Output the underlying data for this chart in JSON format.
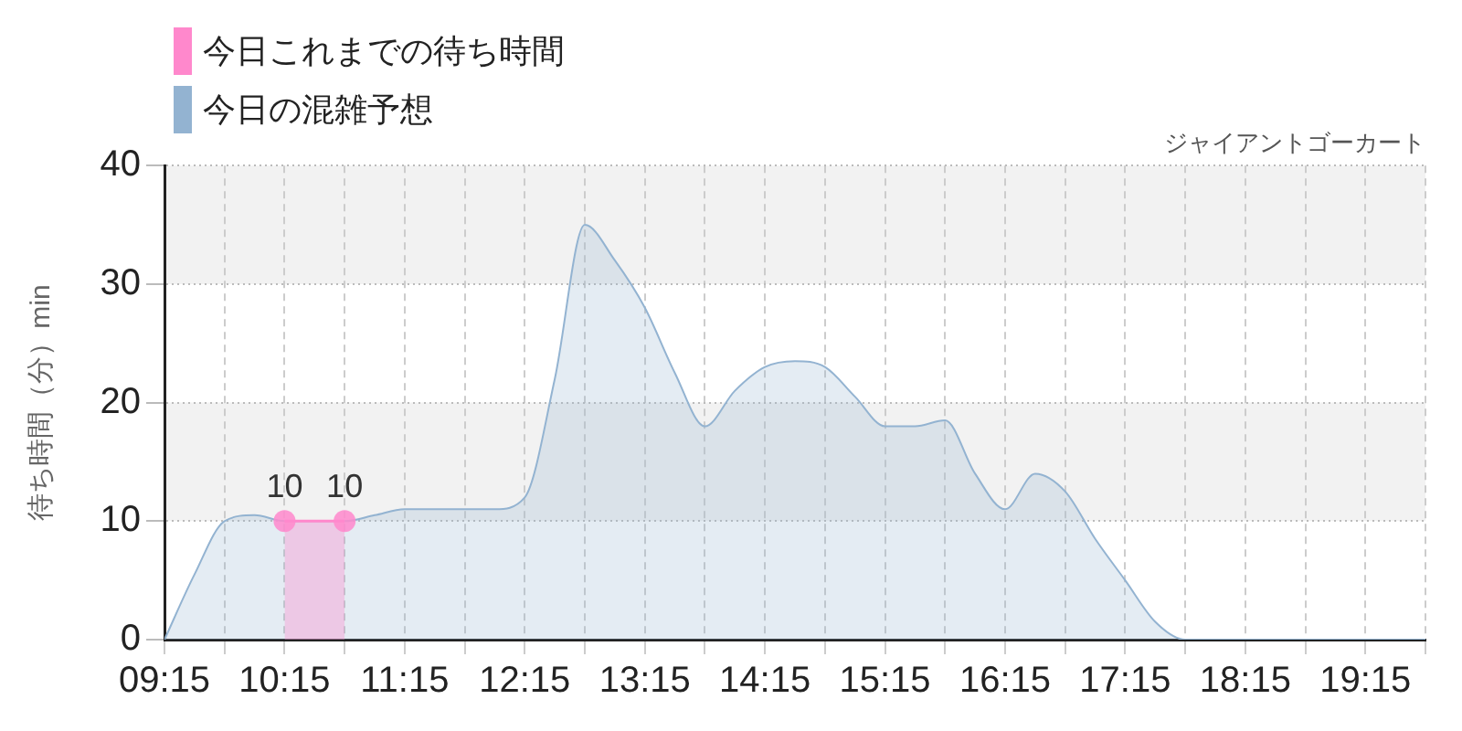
{
  "chart_data": {
    "type": "area",
    "title": "ジャイアントゴーカート",
    "ylabel": "待ち時間（分）min",
    "x": [
      9.25,
      9.5,
      9.75,
      10,
      10.25,
      10.5,
      10.75,
      11,
      11.25,
      11.5,
      11.75,
      12,
      12.25,
      12.5,
      12.75,
      13,
      13.25,
      13.5,
      13.75,
      14,
      14.25,
      14.5,
      14.75,
      15,
      15.25,
      15.5,
      15.75,
      16,
      16.25,
      16.5,
      16.75,
      17,
      17.25,
      17.5,
      17.75,
      18,
      18.25,
      18.5,
      18.75,
      19,
      19.25,
      19.5,
      19.75
    ],
    "series": [
      {
        "name": "今日これまでの待ち時間",
        "color": "#ff88cc",
        "marker": "circle",
        "x": [
          10.25,
          10.75
        ],
        "values": [
          10,
          10
        ],
        "value_labels": [
          "10",
          "10"
        ]
      },
      {
        "name": "今日の混雑予想",
        "color": "#93b3d1",
        "marker": "none",
        "values": [
          0,
          5.5,
          10,
          10.5,
          10,
          10,
          10,
          10.5,
          11,
          11,
          11,
          11,
          12,
          22,
          35,
          32,
          28,
          22.5,
          18,
          21,
          23,
          23.5,
          23,
          20.5,
          18,
          18,
          18.5,
          14,
          11,
          14,
          12.5,
          8.5,
          5,
          1.5,
          0,
          0,
          0,
          0,
          0,
          0,
          0,
          0,
          0
        ]
      }
    ],
    "xlim": [
      9.25,
      19.75
    ],
    "xticks": [
      {
        "value": 9.25,
        "label": "09:15"
      },
      {
        "value": 9.75,
        "label": null
      },
      {
        "value": 10.25,
        "label": "10:15"
      },
      {
        "value": 10.75,
        "label": null
      },
      {
        "value": 11.25,
        "label": "11:15"
      },
      {
        "value": 11.75,
        "label": null
      },
      {
        "value": 12.25,
        "label": "12:15"
      },
      {
        "value": 12.75,
        "label": null
      },
      {
        "value": 13.25,
        "label": "13:15"
      },
      {
        "value": 13.75,
        "label": null
      },
      {
        "value": 14.25,
        "label": "14:15"
      },
      {
        "value": 14.75,
        "label": null
      },
      {
        "value": 15.25,
        "label": "15:15"
      },
      {
        "value": 15.75,
        "label": null
      },
      {
        "value": 16.25,
        "label": "16:15"
      },
      {
        "value": 16.75,
        "label": null
      },
      {
        "value": 17.25,
        "label": "17:15"
      },
      {
        "value": 17.75,
        "label": null
      },
      {
        "value": 18.25,
        "label": "18:15"
      },
      {
        "value": 18.75,
        "label": null
      },
      {
        "value": 19.25,
        "label": "19:15"
      },
      {
        "value": 19.75,
        "label": null
      }
    ],
    "ylim": [
      0,
      40
    ],
    "yticks": [
      0,
      10,
      20,
      30,
      40
    ],
    "bands": [
      {
        "axis": "y",
        "from": 10,
        "to": 20,
        "color": "#f2f2f2"
      },
      {
        "axis": "y",
        "from": 30,
        "to": 40,
        "color": "#f2f2f2"
      }
    ],
    "grid": true,
    "legend": "top left"
  }
}
